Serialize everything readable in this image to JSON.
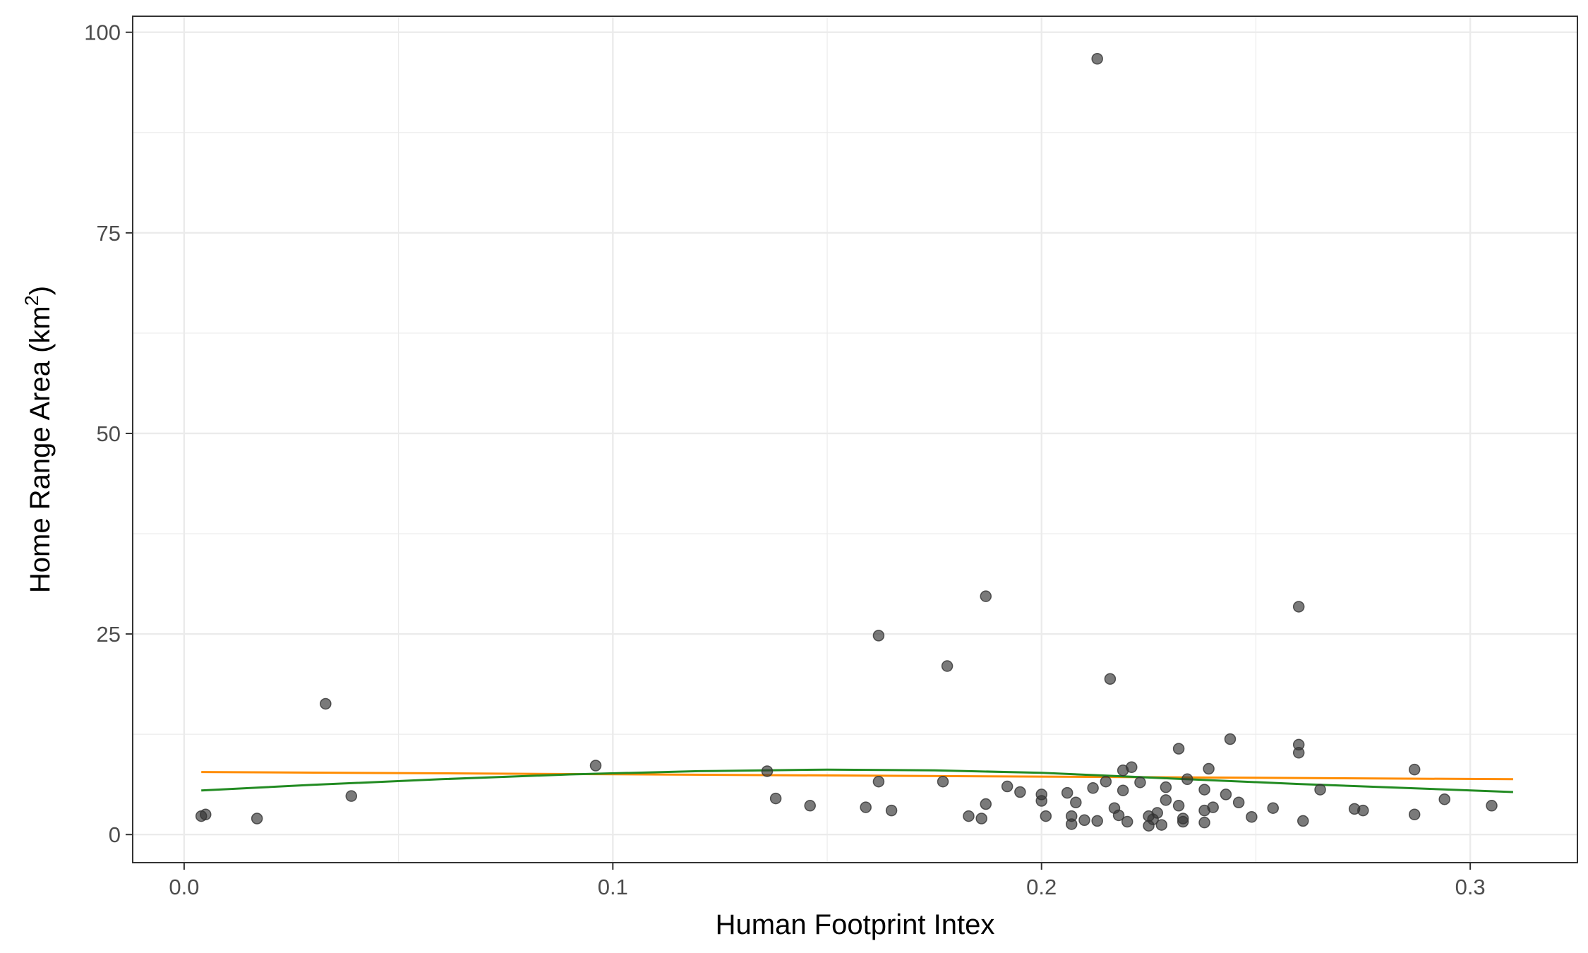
{
  "chart_data": {
    "type": "scatter",
    "title": "",
    "xlabel": "Human Footprint Intex",
    "ylabel_main": "Home Range Area (km",
    "ylabel_sup": "2",
    "ylabel_end": ")",
    "xlim": [
      -0.012,
      0.325
    ],
    "ylim": [
      -3.5,
      102
    ],
    "x_ticks": [
      0.0,
      0.1,
      0.2,
      0.3
    ],
    "x_tick_labels": [
      "0.0",
      "0.1",
      "0.2",
      "0.3"
    ],
    "y_ticks": [
      0,
      25,
      50,
      75,
      100
    ],
    "y_tick_labels": [
      "0",
      "25",
      "50",
      "75",
      "100"
    ],
    "grid": true,
    "colors": {
      "points": "#333333",
      "linear_fit": "#FF8C00",
      "quadratic_fit": "#228B22",
      "grid": "#EBEBEB",
      "panel_border": "#333333"
    },
    "points": [
      {
        "x": 0.004,
        "y": 2.3
      },
      {
        "x": 0.005,
        "y": 2.5
      },
      {
        "x": 0.017,
        "y": 2.0
      },
      {
        "x": 0.033,
        "y": 16.3
      },
      {
        "x": 0.039,
        "y": 4.8
      },
      {
        "x": 0.096,
        "y": 8.6
      },
      {
        "x": 0.136,
        "y": 7.9
      },
      {
        "x": 0.138,
        "y": 4.5
      },
      {
        "x": 0.146,
        "y": 3.6
      },
      {
        "x": 0.159,
        "y": 3.4
      },
      {
        "x": 0.162,
        "y": 24.8
      },
      {
        "x": 0.162,
        "y": 6.6
      },
      {
        "x": 0.165,
        "y": 3.0
      },
      {
        "x": 0.177,
        "y": 6.6
      },
      {
        "x": 0.178,
        "y": 21.0
      },
      {
        "x": 0.183,
        "y": 2.3
      },
      {
        "x": 0.186,
        "y": 2.0
      },
      {
        "x": 0.187,
        "y": 29.7
      },
      {
        "x": 0.187,
        "y": 3.8
      },
      {
        "x": 0.192,
        "y": 6.0
      },
      {
        "x": 0.195,
        "y": 5.3
      },
      {
        "x": 0.2,
        "y": 4.2
      },
      {
        "x": 0.2,
        "y": 5.0
      },
      {
        "x": 0.201,
        "y": 2.3
      },
      {
        "x": 0.206,
        "y": 5.2
      },
      {
        "x": 0.207,
        "y": 2.3
      },
      {
        "x": 0.207,
        "y": 1.3
      },
      {
        "x": 0.208,
        "y": 4.0
      },
      {
        "x": 0.21,
        "y": 1.8
      },
      {
        "x": 0.212,
        "y": 5.8
      },
      {
        "x": 0.213,
        "y": 96.7
      },
      {
        "x": 0.213,
        "y": 1.7
      },
      {
        "x": 0.215,
        "y": 6.6
      },
      {
        "x": 0.216,
        "y": 19.4
      },
      {
        "x": 0.217,
        "y": 3.3
      },
      {
        "x": 0.218,
        "y": 2.4
      },
      {
        "x": 0.219,
        "y": 8.0
      },
      {
        "x": 0.219,
        "y": 5.5
      },
      {
        "x": 0.22,
        "y": 1.6
      },
      {
        "x": 0.221,
        "y": 8.4
      },
      {
        "x": 0.223,
        "y": 6.5
      },
      {
        "x": 0.225,
        "y": 2.3
      },
      {
        "x": 0.225,
        "y": 1.1
      },
      {
        "x": 0.226,
        "y": 1.9
      },
      {
        "x": 0.227,
        "y": 2.7
      },
      {
        "x": 0.228,
        "y": 1.2
      },
      {
        "x": 0.229,
        "y": 5.9
      },
      {
        "x": 0.229,
        "y": 4.3
      },
      {
        "x": 0.232,
        "y": 10.7
      },
      {
        "x": 0.232,
        "y": 3.6
      },
      {
        "x": 0.233,
        "y": 2.0
      },
      {
        "x": 0.233,
        "y": 1.6
      },
      {
        "x": 0.234,
        "y": 6.9
      },
      {
        "x": 0.238,
        "y": 3.0
      },
      {
        "x": 0.238,
        "y": 1.5
      },
      {
        "x": 0.238,
        "y": 5.6
      },
      {
        "x": 0.239,
        "y": 8.2
      },
      {
        "x": 0.24,
        "y": 3.4
      },
      {
        "x": 0.243,
        "y": 5.0
      },
      {
        "x": 0.244,
        "y": 11.9
      },
      {
        "x": 0.246,
        "y": 4.0
      },
      {
        "x": 0.249,
        "y": 2.2
      },
      {
        "x": 0.254,
        "y": 3.3
      },
      {
        "x": 0.26,
        "y": 28.4
      },
      {
        "x": 0.26,
        "y": 11.2
      },
      {
        "x": 0.26,
        "y": 10.2
      },
      {
        "x": 0.261,
        "y": 1.7
      },
      {
        "x": 0.265,
        "y": 5.6
      },
      {
        "x": 0.273,
        "y": 3.2
      },
      {
        "x": 0.275,
        "y": 3.0
      },
      {
        "x": 0.287,
        "y": 8.1
      },
      {
        "x": 0.287,
        "y": 2.5
      },
      {
        "x": 0.294,
        "y": 4.4
      },
      {
        "x": 0.305,
        "y": 3.6
      }
    ],
    "series": [
      {
        "x": [
          0.004,
          0.31
        ],
        "y": [
          7.8,
          6.9
        ]
      },
      {
        "x": [
          0.004,
          0.03,
          0.06,
          0.09,
          0.12,
          0.15,
          0.175,
          0.2,
          0.23,
          0.26,
          0.29,
          0.31
        ],
        "y": [
          5.5,
          6.2,
          6.9,
          7.5,
          7.9,
          8.1,
          8.0,
          7.7,
          7.0,
          6.3,
          5.7,
          5.3
        ]
      }
    ]
  }
}
